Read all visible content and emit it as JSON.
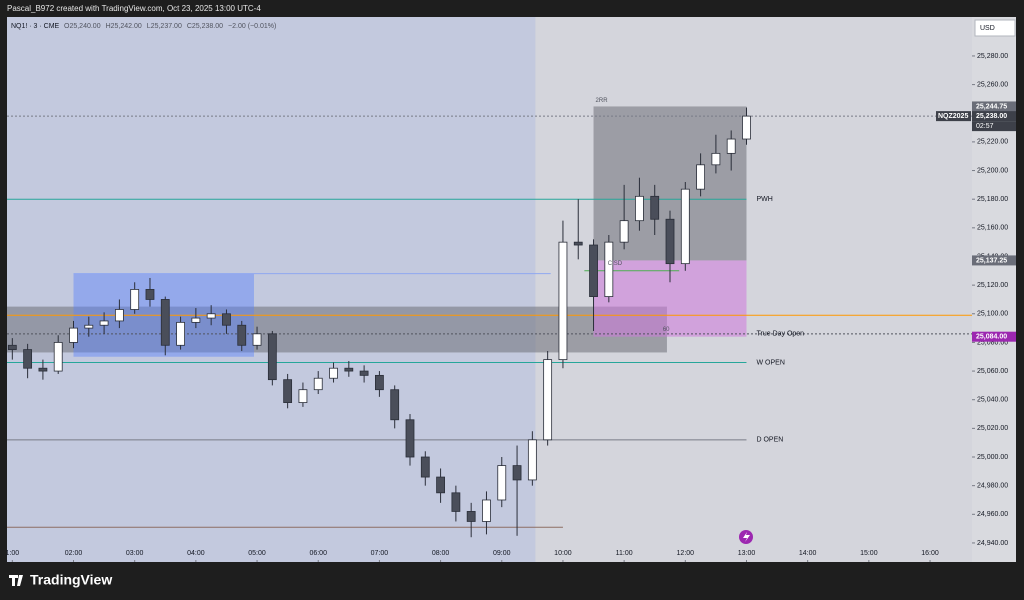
{
  "header": {
    "credit": "Pascal_B972 created with TradingView.com, Oct 23, 2025 13:00 UTC-4"
  },
  "footer": {
    "brand": "TradingView"
  },
  "chart_data": {
    "type": "candlestick",
    "symbol": "NQ1! · 3 · CME",
    "ohlc_legend": [
      "O25,240.00",
      "H25,242.00",
      "L25,237.00",
      "C25,238.00",
      "−2.00 (−0.01%)"
    ],
    "currency": "USD",
    "x": [
      1.0,
      1.25,
      1.5,
      1.75,
      2.0,
      2.25,
      2.5,
      2.75,
      3.0,
      3.25,
      3.5,
      3.75,
      4.0,
      4.25,
      4.5,
      4.75,
      5.0,
      5.25,
      5.5,
      5.75,
      6.0,
      6.25,
      6.5,
      6.75,
      7.0,
      7.25,
      7.5,
      7.75,
      8.0,
      8.25,
      8.5,
      8.75,
      9.0,
      9.25,
      9.5,
      9.75,
      10.0,
      10.25,
      10.5,
      10.75,
      11.0,
      11.25,
      11.5,
      11.75,
      12.0,
      12.25,
      12.5,
      12.75,
      13.0
    ],
    "open": [
      25078,
      25075,
      25062,
      25060,
      25080,
      25090,
      25092,
      25095,
      25103,
      25117,
      25110,
      25078,
      25094,
      25097,
      25100,
      25092,
      25078,
      25086,
      25054,
      25038,
      25047,
      25055,
      25062,
      25060,
      25057,
      25047,
      25026,
      25000,
      24986,
      24975,
      24962,
      24955,
      24970,
      24994,
      24984,
      25012,
      25068,
      25150,
      25148,
      25112,
      25150,
      25165,
      25182,
      25166,
      25135,
      25187,
      25204,
      25212,
      25222
    ],
    "high": [
      25083,
      25079,
      25068,
      25085,
      25095,
      25098,
      25101,
      25110,
      25122,
      25125,
      25112,
      25098,
      25104,
      25106,
      25103,
      25095,
      25091,
      25088,
      25058,
      25052,
      25060,
      25066,
      25067,
      25064,
      25060,
      25050,
      25030,
      25004,
      24992,
      24980,
      24968,
      24976,
      25000,
      25008,
      25018,
      25074,
      25165,
      25180,
      25152,
      25155,
      25190,
      25195,
      25190,
      25172,
      25192,
      25212,
      25225,
      25228,
      25244
    ],
    "low": [
      25068,
      25055,
      25054,
      25058,
      25076,
      25084,
      25086,
      25090,
      25100,
      25105,
      25071,
      25075,
      25090,
      25092,
      25086,
      25074,
      25075,
      25050,
      25034,
      25035,
      25044,
      25052,
      25056,
      25052,
      25042,
      25020,
      24994,
      24980,
      24968,
      24955,
      24944,
      24946,
      24965,
      24945,
      24980,
      25008,
      25062,
      25138,
      25088,
      25108,
      25145,
      25158,
      25155,
      25122,
      25130,
      25182,
      25198,
      25200,
      25218
    ],
    "close": [
      25075,
      25062,
      25060,
      25080,
      25090,
      25092,
      25095,
      25103,
      25117,
      25110,
      25078,
      25094,
      25097,
      25100,
      25092,
      25078,
      25086,
      25054,
      25038,
      25047,
      25055,
      25062,
      25060,
      25057,
      25047,
      25026,
      25000,
      24986,
      24975,
      24962,
      24955,
      24970,
      24994,
      24984,
      25012,
      25068,
      25150,
      25148,
      25112,
      25150,
      25165,
      25182,
      25166,
      25135,
      25187,
      25204,
      25212,
      25222,
      25238
    ],
    "up_color": "#ffffff",
    "down_color": "#4a4e5a",
    "xlim": [
      0.913,
      16.686
    ],
    "xticks": [
      {
        "value": 1,
        "label": "1:00"
      },
      {
        "value": 2,
        "label": "02:00"
      },
      {
        "value": 3,
        "label": "03:00"
      },
      {
        "value": 4,
        "label": "04:00"
      },
      {
        "value": 5,
        "label": "05:00"
      },
      {
        "value": 6,
        "label": "06:00"
      },
      {
        "value": 7,
        "label": "07:00"
      },
      {
        "value": 8,
        "label": "08:00"
      },
      {
        "value": 9,
        "label": "09:00"
      },
      {
        "value": 10,
        "label": "10:00"
      },
      {
        "value": 11,
        "label": "11:00"
      },
      {
        "value": 12,
        "label": "12:00"
      },
      {
        "value": 13,
        "label": "13:00"
      },
      {
        "value": 14,
        "label": "14:00"
      },
      {
        "value": 15,
        "label": "15:00"
      },
      {
        "value": 16,
        "label": "16:00"
      }
    ],
    "ylim": [
      24926.7,
      25307.2
    ],
    "yticks": [
      {
        "value": 24940,
        "label": "24,940.00"
      },
      {
        "value": 24960,
        "label": "24,960.00"
      },
      {
        "value": 24980,
        "label": "24,980.00"
      },
      {
        "value": 25000,
        "label": "25,000.00"
      },
      {
        "value": 25020,
        "label": "25,020.00"
      },
      {
        "value": 25040,
        "label": "25,040.00"
      },
      {
        "value": 25060,
        "label": "25,060.00"
      },
      {
        "value": 25080,
        "label": "25,080.00"
      },
      {
        "value": 25100,
        "label": "25,100.00"
      },
      {
        "value": 25120,
        "label": "25,120.00"
      },
      {
        "value": 25140,
        "label": "25,140.00"
      },
      {
        "value": 25160,
        "label": "25,160.00"
      },
      {
        "value": 25180,
        "label": "25,180.00"
      },
      {
        "value": 25200,
        "label": "25,200.00"
      },
      {
        "value": 25220,
        "label": "25,220.00"
      },
      {
        "value": 25240,
        "label": "25,240.00"
      },
      {
        "value": 25260,
        "label": "25,260.00"
      },
      {
        "value": 25280,
        "label": "25,280.00"
      }
    ],
    "grid": false,
    "session_shade": {
      "x": [
        0.913,
        9.55
      ],
      "color": "#c3c9de"
    },
    "zones": [
      {
        "x": [
          0.913,
          11.7
        ],
        "y": [
          25073,
          25105
        ],
        "color": "rgba(110,112,120,0.55)"
      },
      {
        "x": [
          2.0,
          4.95
        ],
        "y": [
          25070,
          25128
        ],
        "color": "rgba(90,130,250,0.45)"
      },
      {
        "x": [
          10.5,
          13.0
        ],
        "y": [
          25137.25,
          25244.75
        ],
        "color": "rgba(110,112,120,0.55)"
      },
      {
        "x": [
          10.5,
          13.0
        ],
        "y": [
          25084,
          25137.25
        ],
        "color": "rgba(205,120,220,0.55)"
      }
    ],
    "levels": [
      {
        "label": "PWH",
        "value": 25180,
        "span": [
          0.913,
          13.0
        ],
        "color": "#26a69a",
        "dash": false
      },
      {
        "label": "True Day Open",
        "value": 25086,
        "span": [
          0.913,
          16.686
        ],
        "color": "#50535e",
        "dash": true
      },
      {
        "label": "W OPEN",
        "value": 25066,
        "span": [
          0.913,
          13.0
        ],
        "color": "#26a69a",
        "dash": false
      },
      {
        "label": "D OPEN",
        "value": 25012,
        "span": [
          0.913,
          13.0
        ],
        "color": "#787b86",
        "dash": false
      }
    ],
    "lines": [
      {
        "value": 25099,
        "span": [
          0.913,
          16.686
        ],
        "color": "#ff9800",
        "dash": false
      },
      {
        "value": 25238,
        "span": [
          0.913,
          16.686
        ],
        "color": "#787b86",
        "dash": true
      },
      {
        "value": 25128,
        "span": [
          2.0,
          9.8
        ],
        "color": "#8fa8f0",
        "dash": false
      },
      {
        "value": 24951,
        "span": [
          0.913,
          10.0
        ],
        "color": "#8d6e63",
        "dash": false
      },
      {
        "value": 25130,
        "span": [
          10.35,
          11.9
        ],
        "color": "#4caf50",
        "dash": false
      }
    ],
    "notes": [
      {
        "text": "2RR",
        "x": 10.5,
        "y": 25249
      },
      {
        "text": "CISD",
        "x": 10.7,
        "y": 25135
      },
      {
        "text": "60",
        "x": 11.6,
        "y": 25089
      }
    ],
    "price_labels": [
      {
        "value": 25244.75,
        "label": "25,244.75",
        "color": "#6a6d78"
      },
      {
        "value": 25238,
        "label": "25,238.00",
        "color": "#3d4049",
        "countdown": "02:57",
        "tag": "NQZ2025"
      },
      {
        "value": 25137.25,
        "label": "25,137.25",
        "color": "#6a6d78"
      },
      {
        "value": 25084,
        "label": "25,084.00",
        "color": "#9c27b0"
      }
    ]
  }
}
